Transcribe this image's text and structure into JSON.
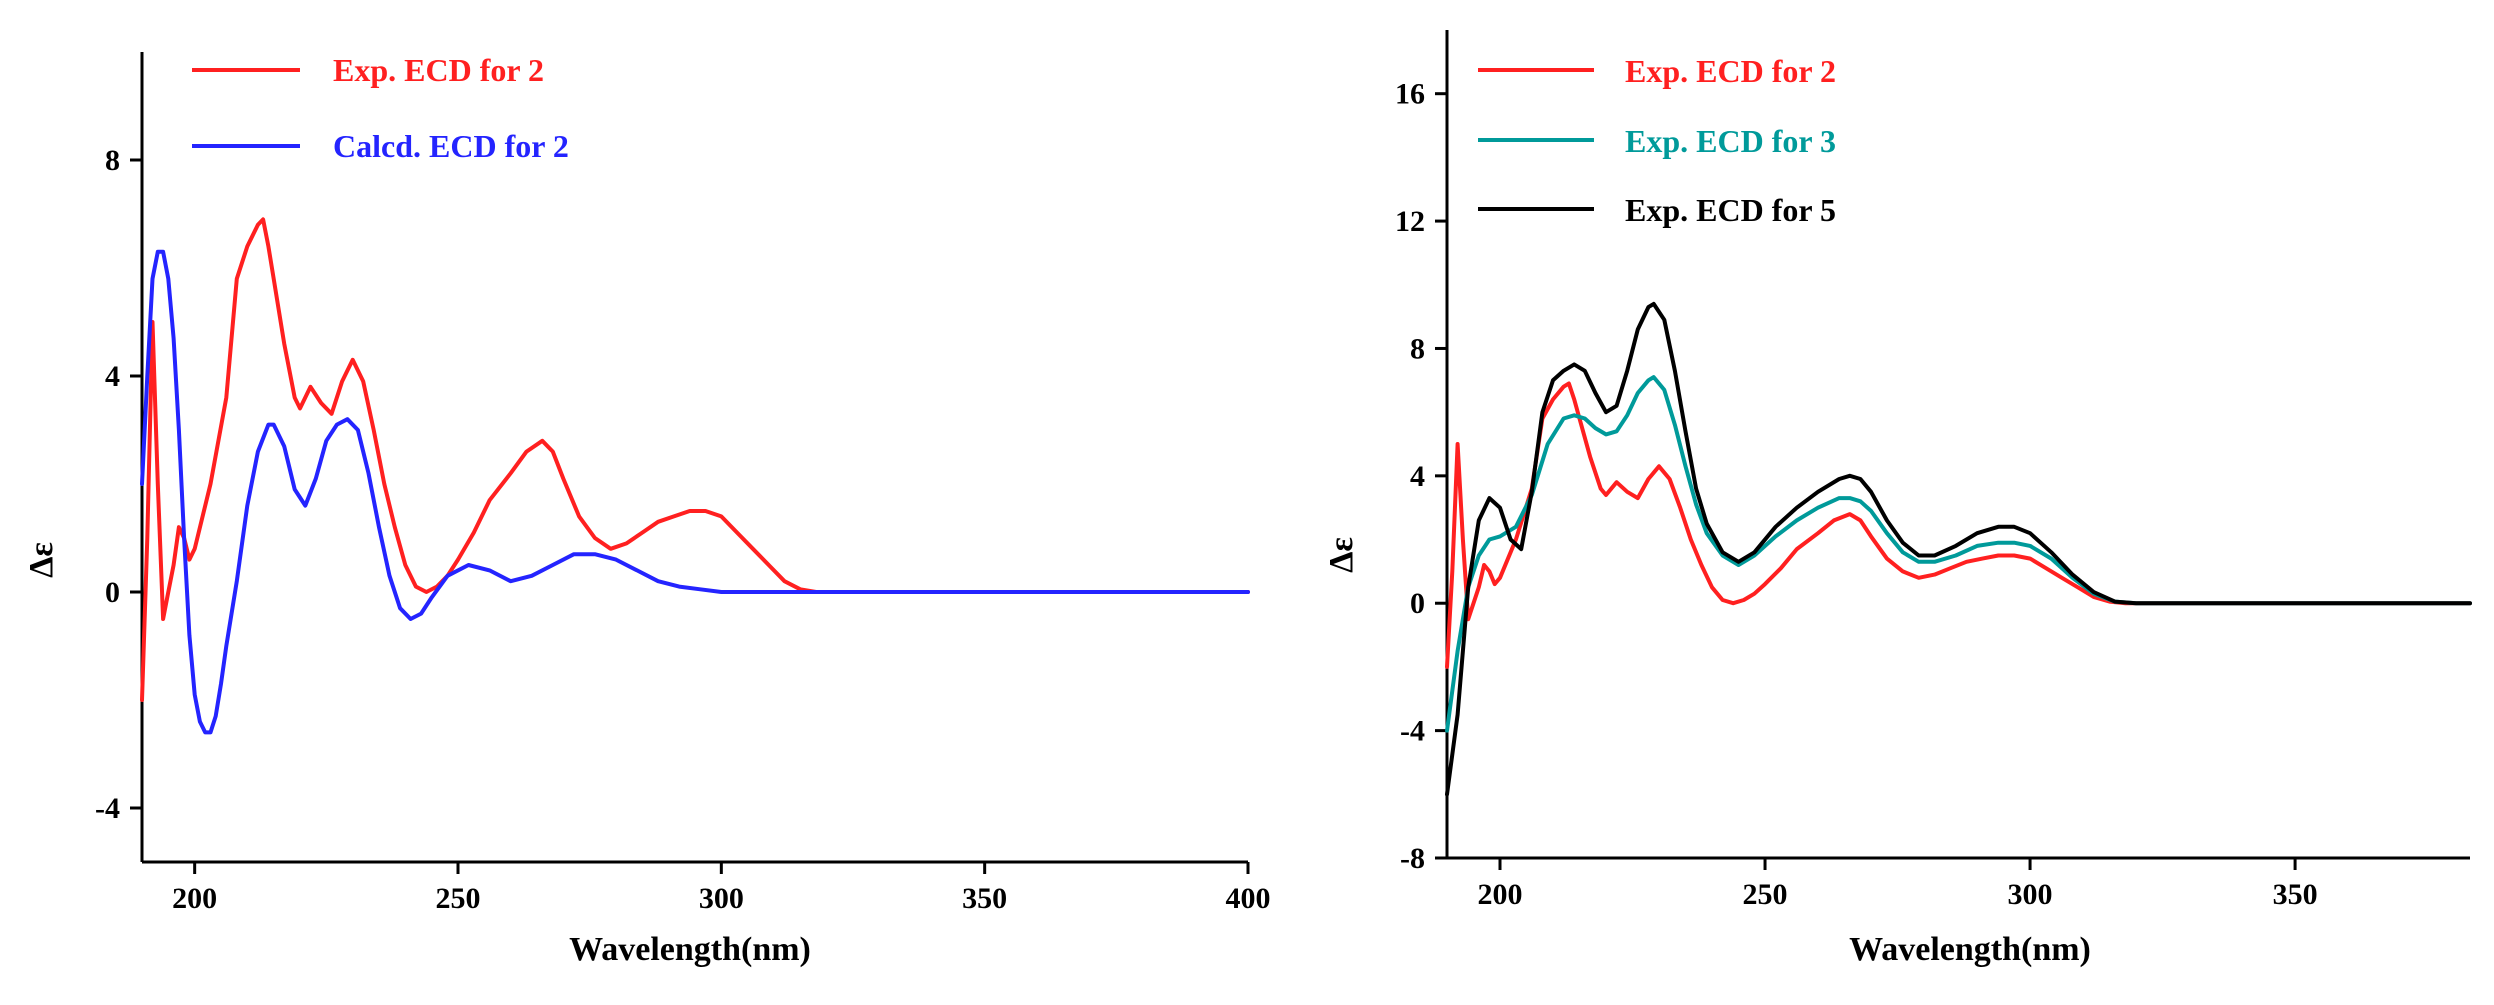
{
  "chart_data": [
    {
      "type": "line",
      "panel": "left",
      "xlabel": "Wavelength(nm)",
      "ylabel": "Δε",
      "xlim": [
        190,
        400
      ],
      "ylim": [
        -5,
        10
      ],
      "xticks": [
        200,
        250,
        300,
        350,
        400
      ],
      "yticks": [
        -4,
        0,
        4,
        8
      ],
      "legend_position": "top-left",
      "series": [
        {
          "name": "Exp. ECD for 2",
          "color": "#ff2020",
          "x": [
            190,
            191,
            192,
            193,
            194,
            195,
            196,
            197,
            198,
            199,
            200,
            203,
            206,
            208,
            210,
            212,
            213,
            214,
            215,
            217,
            219,
            220,
            222,
            224,
            226,
            228,
            230,
            232,
            234,
            236,
            238,
            240,
            242,
            244,
            246,
            248,
            250,
            253,
            256,
            260,
            263,
            266,
            268,
            270,
            273,
            276,
            279,
            282,
            285,
            288,
            291,
            294,
            297,
            300,
            303,
            306,
            309,
            312,
            315,
            318,
            320,
            400
          ],
          "y": [
            -2,
            1,
            5,
            2,
            -0.5,
            0,
            0.5,
            1.2,
            1,
            0.6,
            0.8,
            2,
            3.6,
            5.8,
            6.4,
            6.8,
            6.9,
            6.4,
            5.8,
            4.6,
            3.6,
            3.4,
            3.8,
            3.5,
            3.3,
            3.9,
            4.3,
            3.9,
            3.0,
            2.0,
            1.2,
            0.5,
            0.1,
            0.0,
            0.1,
            0.3,
            0.6,
            1.1,
            1.7,
            2.2,
            2.6,
            2.8,
            2.6,
            2.1,
            1.4,
            1.0,
            0.8,
            0.9,
            1.1,
            1.3,
            1.4,
            1.5,
            1.5,
            1.4,
            1.1,
            0.8,
            0.5,
            0.2,
            0.05,
            0.0,
            0.0,
            0.0
          ]
        },
        {
          "name": "Calcd. ECD for 2",
          "color": "#2424ff",
          "x": [
            190,
            191,
            192,
            193,
            194,
            195,
            196,
            197,
            198,
            199,
            200,
            201,
            202,
            203,
            204,
            205,
            206,
            208,
            210,
            212,
            214,
            215,
            217,
            219,
            221,
            223,
            225,
            227,
            229,
            231,
            233,
            235,
            237,
            239,
            241,
            243,
            245,
            248,
            252,
            256,
            260,
            264,
            268,
            272,
            276,
            280,
            284,
            288,
            292,
            296,
            300,
            400
          ],
          "y": [
            2,
            4,
            5.8,
            6.3,
            6.3,
            5.8,
            4.7,
            3.0,
            1.0,
            -0.8,
            -1.9,
            -2.4,
            -2.6,
            -2.6,
            -2.3,
            -1.7,
            -1.0,
            0.2,
            1.6,
            2.6,
            3.1,
            3.1,
            2.7,
            1.9,
            1.6,
            2.1,
            2.8,
            3.1,
            3.2,
            3.0,
            2.2,
            1.2,
            0.3,
            -0.3,
            -0.5,
            -0.4,
            -0.1,
            0.3,
            0.5,
            0.4,
            0.2,
            0.3,
            0.5,
            0.7,
            0.7,
            0.6,
            0.4,
            0.2,
            0.1,
            0.05,
            0.0,
            0.0
          ]
        }
      ]
    },
    {
      "type": "line",
      "panel": "right",
      "xlabel": "Wavelength(nm)",
      "ylabel": "Δε",
      "xlim": [
        190,
        383
      ],
      "ylim": [
        -8,
        18
      ],
      "xticks": [
        200,
        250,
        300,
        350
      ],
      "yticks": [
        -8,
        -4,
        0,
        4,
        8,
        12,
        16
      ],
      "legend_position": "top-left",
      "series": [
        {
          "name": "Exp. ECD for 2",
          "color": "#ff2020",
          "x": [
            190,
            191,
            192,
            193,
            194,
            195,
            196,
            197,
            198,
            199,
            200,
            203,
            206,
            208,
            210,
            212,
            213,
            214,
            215,
            217,
            219,
            220,
            222,
            224,
            226,
            228,
            230,
            232,
            234,
            236,
            238,
            240,
            242,
            244,
            246,
            248,
            250,
            253,
            256,
            260,
            263,
            266,
            268,
            270,
            273,
            276,
            279,
            282,
            285,
            288,
            291,
            294,
            297,
            300,
            303,
            306,
            309,
            312,
            315,
            318,
            320,
            383
          ],
          "y": [
            -2,
            1,
            5,
            2,
            -0.5,
            0,
            0.5,
            1.2,
            1,
            0.6,
            0.8,
            2,
            3.6,
            5.8,
            6.4,
            6.8,
            6.9,
            6.4,
            5.8,
            4.6,
            3.6,
            3.4,
            3.8,
            3.5,
            3.3,
            3.9,
            4.3,
            3.9,
            3.0,
            2.0,
            1.2,
            0.5,
            0.1,
            0.0,
            0.1,
            0.3,
            0.6,
            1.1,
            1.7,
            2.2,
            2.6,
            2.8,
            2.6,
            2.1,
            1.4,
            1.0,
            0.8,
            0.9,
            1.1,
            1.3,
            1.4,
            1.5,
            1.5,
            1.4,
            1.1,
            0.8,
            0.5,
            0.2,
            0.05,
            0.0,
            0.0,
            0.0
          ]
        },
        {
          "name": "Exp. ECD for 3",
          "color": "#009a9a",
          "x": [
            190,
            192,
            194,
            196,
            198,
            200,
            203,
            206,
            209,
            212,
            214,
            216,
            218,
            220,
            222,
            224,
            226,
            228,
            229,
            231,
            233,
            235,
            237,
            239,
            242,
            245,
            248,
            252,
            256,
            260,
            264,
            266,
            268,
            270,
            273,
            276,
            279,
            282,
            286,
            290,
            294,
            297,
            300,
            304,
            308,
            312,
            316,
            320,
            383
          ],
          "y": [
            -4,
            -1.5,
            0.5,
            1.5,
            2.0,
            2.1,
            2.4,
            3.4,
            5.0,
            5.8,
            5.9,
            5.8,
            5.5,
            5.3,
            5.4,
            5.9,
            6.6,
            7.0,
            7.1,
            6.7,
            5.6,
            4.3,
            3.1,
            2.2,
            1.5,
            1.2,
            1.5,
            2.1,
            2.6,
            3.0,
            3.3,
            3.3,
            3.2,
            2.9,
            2.2,
            1.6,
            1.3,
            1.3,
            1.5,
            1.8,
            1.9,
            1.9,
            1.8,
            1.4,
            0.8,
            0.3,
            0.05,
            0.0,
            0.0
          ]
        },
        {
          "name": "Exp. ECD for 5",
          "color": "#000000",
          "x": [
            190,
            192,
            194,
            196,
            198,
            200,
            202,
            204,
            206,
            208,
            210,
            212,
            214,
            216,
            218,
            220,
            222,
            224,
            226,
            228,
            229,
            231,
            233,
            235,
            237,
            239,
            242,
            245,
            248,
            252,
            256,
            260,
            264,
            266,
            268,
            270,
            273,
            276,
            279,
            282,
            286,
            290,
            294,
            297,
            300,
            304,
            308,
            312,
            316,
            320,
            383
          ],
          "y": [
            -6,
            -3.5,
            0.5,
            2.6,
            3.3,
            3.0,
            2.0,
            1.7,
            3.5,
            6.0,
            7.0,
            7.3,
            7.5,
            7.3,
            6.6,
            6.0,
            6.2,
            7.3,
            8.6,
            9.3,
            9.4,
            8.9,
            7.3,
            5.4,
            3.6,
            2.5,
            1.6,
            1.3,
            1.6,
            2.4,
            3.0,
            3.5,
            3.9,
            4.0,
            3.9,
            3.5,
            2.6,
            1.9,
            1.5,
            1.5,
            1.8,
            2.2,
            2.4,
            2.4,
            2.2,
            1.6,
            0.9,
            0.35,
            0.05,
            0.0,
            0.0
          ]
        }
      ]
    }
  ]
}
